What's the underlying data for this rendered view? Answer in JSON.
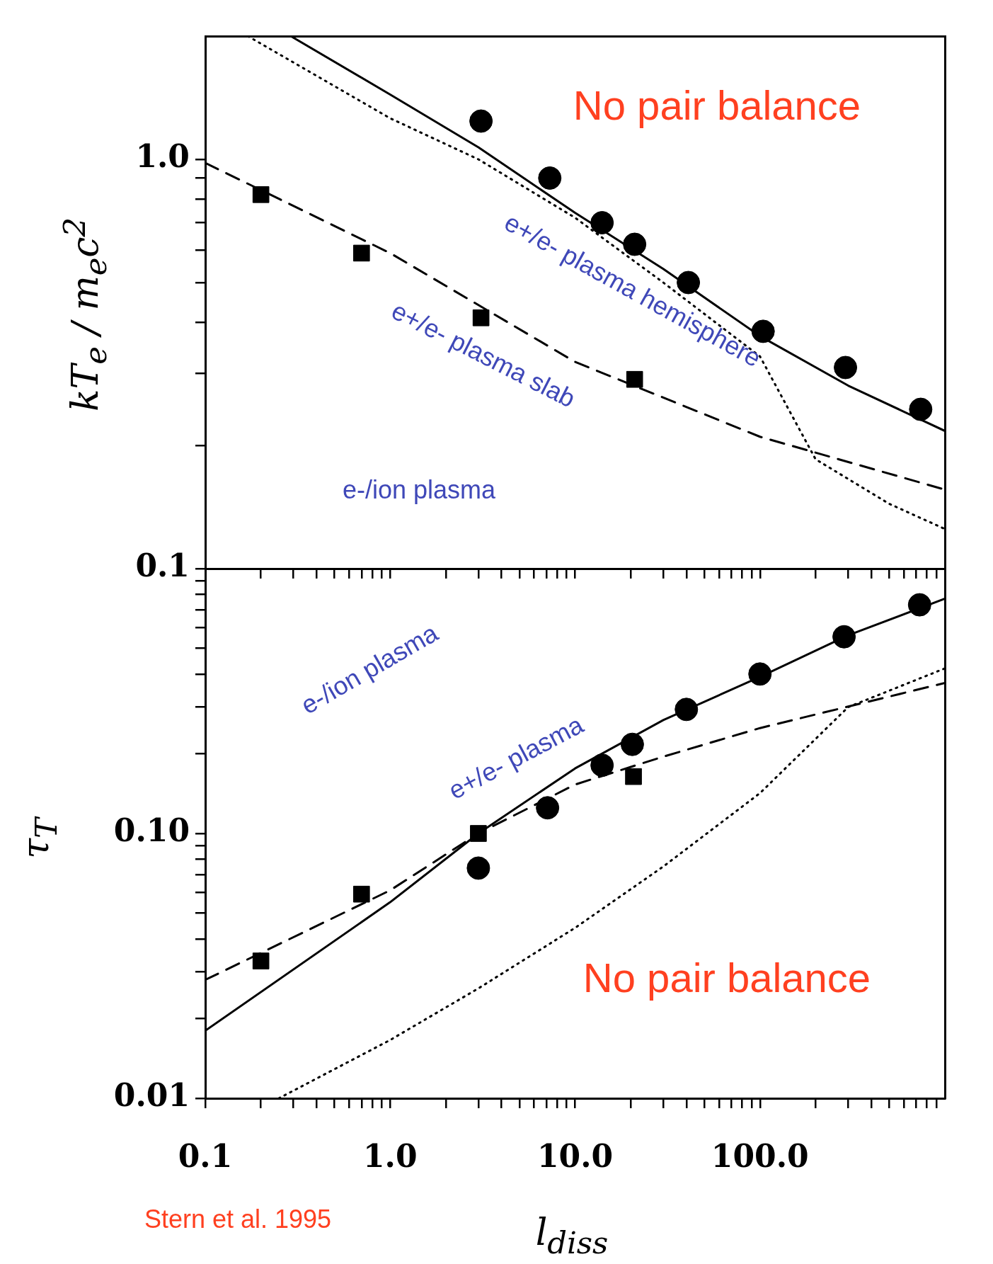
{
  "chart_data": [
    {
      "type": "line",
      "ylabel": "kT$_{e}$ / m$_{e}$c$^{2}$",
      "log": "xy",
      "grid": false,
      "legend": false,
      "tick_labels": "y",
      "xlim": [
        0.1,
        1000
      ],
      "ylim": [
        0.1,
        2
      ],
      "xticks": [
        0.1,
        {
          "value": 0.2,
          "label": null
        },
        {
          "value": 0.3,
          "label": null
        },
        {
          "value": 0.4,
          "label": null
        },
        {
          "value": 0.5,
          "label": null
        },
        {
          "value": 0.6,
          "label": null
        },
        {
          "value": 0.7,
          "label": null
        },
        {
          "value": 0.8,
          "label": null
        },
        {
          "value": 0.9,
          "label": null
        },
        {
          "value": 1,
          "label": null
        },
        {
          "value": 2,
          "label": null
        },
        {
          "value": 3,
          "label": null
        },
        {
          "value": 4,
          "label": null
        },
        {
          "value": 5,
          "label": null
        },
        {
          "value": 6,
          "label": null
        },
        {
          "value": 7,
          "label": null
        },
        {
          "value": 8,
          "label": null
        },
        {
          "value": 9,
          "label": null
        },
        {
          "value": 10,
          "label": null
        },
        {
          "value": 20,
          "label": null
        },
        {
          "value": 30,
          "label": null
        },
        {
          "value": 40,
          "label": null
        },
        {
          "value": 50,
          "label": null
        },
        {
          "value": 60,
          "label": null
        },
        {
          "value": 70,
          "label": null
        },
        {
          "value": 80,
          "label": null
        },
        {
          "value": 90,
          "label": null
        },
        {
          "value": 100,
          "label": null
        },
        {
          "value": 200,
          "label": null
        },
        {
          "value": 300,
          "label": null
        },
        {
          "value": 400,
          "label": null
        },
        {
          "value": 500,
          "label": null
        },
        {
          "value": 600,
          "label": null
        },
        {
          "value": 700,
          "label": null
        },
        {
          "value": 800,
          "label": null
        },
        {
          "value": 900,
          "label": null
        }
      ],
      "yticks": [
        0.1,
        {
          "value": 0.2,
          "label": null
        },
        {
          "value": 0.3,
          "label": null
        },
        {
          "value": 0.4,
          "label": null
        },
        {
          "value": 0.5,
          "label": null
        },
        {
          "value": 0.6,
          "label": null
        },
        {
          "value": 0.7,
          "label": null
        },
        {
          "value": 0.8,
          "label": null
        },
        {
          "value": 0.9,
          "label": null
        },
        {
          "value": 1,
          "label": "1.0"
        }
      ],
      "series": [
        {
          "line_style": "solid",
          "marker": "none",
          "color": "#000000",
          "x": [
            0.29,
            1,
            3,
            10,
            30,
            100,
            300,
            1000
          ],
          "values": [
            2.0,
            1.44,
            1.07,
            0.74,
            0.54,
            0.37,
            0.28,
            0.217
          ]
        },
        {
          "line_style": "dotted",
          "marker": "none",
          "color": "#000000",
          "x": [
            0.17,
            1,
            3,
            10,
            30,
            100,
            200,
            500,
            1000
          ],
          "values": [
            2.0,
            1.26,
            1.0,
            0.72,
            0.5,
            0.33,
            0.185,
            0.144,
            0.125
          ]
        },
        {
          "line_style": "dashed",
          "marker": "none",
          "color": "#000000",
          "x": [
            0.1,
            1,
            10,
            100,
            1000
          ],
          "values": [
            0.98,
            0.59,
            0.32,
            0.21,
            0.156
          ]
        },
        {
          "type": "scatter",
          "marker": "square",
          "color": "#000000",
          "x": [
            0.2,
            0.7,
            3.1,
            21
          ],
          "values": [
            0.82,
            0.59,
            0.41,
            0.29
          ]
        },
        {
          "type": "scatter",
          "marker": "circle",
          "color": "#000000",
          "x": [
            3.1,
            7.3,
            14,
            21,
            41,
            104,
            290,
            740
          ],
          "values": [
            1.24,
            0.9,
            0.7,
            0.62,
            0.5,
            0.38,
            0.31,
            0.245
          ]
        }
      ],
      "annotations": [
        "No pair balance",
        "e+/e- plasma hemisphere",
        "e+/e- plasma slab",
        "e-/ion plasma"
      ]
    },
    {
      "type": "line",
      "xlabel": "l$_{diss}$",
      "ylabel": "τ$_{T}$",
      "log": "xy",
      "grid": false,
      "legend": false,
      "xlim": [
        0.1,
        1000
      ],
      "ylim": [
        0.01,
        1
      ],
      "xticks": [
        0.1,
        {
          "value": 0.2,
          "label": null
        },
        {
          "value": 0.3,
          "label": null
        },
        {
          "value": 0.4,
          "label": null
        },
        {
          "value": 0.5,
          "label": null
        },
        {
          "value": 0.6,
          "label": null
        },
        {
          "value": 0.7,
          "label": null
        },
        {
          "value": 0.8,
          "label": null
        },
        {
          "value": 0.9,
          "label": null
        },
        {
          "value": 1,
          "label": "1.0"
        },
        {
          "value": 2,
          "label": null
        },
        {
          "value": 3,
          "label": null
        },
        {
          "value": 4,
          "label": null
        },
        {
          "value": 5,
          "label": null
        },
        {
          "value": 6,
          "label": null
        },
        {
          "value": 7,
          "label": null
        },
        {
          "value": 8,
          "label": null
        },
        {
          "value": 9,
          "label": null
        },
        {
          "value": 10,
          "label": "10.0"
        },
        {
          "value": 20,
          "label": null
        },
        {
          "value": 30,
          "label": null
        },
        {
          "value": 40,
          "label": null
        },
        {
          "value": 50,
          "label": null
        },
        {
          "value": 60,
          "label": null
        },
        {
          "value": 70,
          "label": null
        },
        {
          "value": 80,
          "label": null
        },
        {
          "value": 90,
          "label": null
        },
        {
          "value": 100,
          "label": "100.0"
        },
        {
          "value": 200,
          "label": null
        },
        {
          "value": 300,
          "label": null
        },
        {
          "value": 400,
          "label": null
        },
        {
          "value": 500,
          "label": null
        },
        {
          "value": 600,
          "label": null
        },
        {
          "value": 700,
          "label": null
        },
        {
          "value": 800,
          "label": null
        },
        {
          "value": 900,
          "label": null
        }
      ],
      "yticks": [
        0.01,
        {
          "value": 0.02,
          "label": null
        },
        {
          "value": 0.03,
          "label": null
        },
        {
          "value": 0.04,
          "label": null
        },
        {
          "value": 0.05,
          "label": null
        },
        {
          "value": 0.06,
          "label": null
        },
        {
          "value": 0.07,
          "label": null
        },
        {
          "value": 0.08,
          "label": null
        },
        {
          "value": 0.09,
          "label": null
        },
        {
          "value": 0.1,
          "label": "0.10"
        },
        {
          "value": 0.2,
          "label": null
        },
        {
          "value": 0.3,
          "label": null
        },
        {
          "value": 0.4,
          "label": null
        },
        {
          "value": 0.5,
          "label": null
        },
        {
          "value": 0.6,
          "label": null
        },
        {
          "value": 0.7,
          "label": null
        },
        {
          "value": 0.8,
          "label": null
        },
        {
          "value": 0.9,
          "label": null
        }
      ],
      "series": [
        {
          "line_style": "solid",
          "marker": "none",
          "color": "#000000",
          "x": [
            0.1,
            1,
            3,
            10,
            30,
            100,
            300,
            1000
          ],
          "values": [
            0.018,
            0.055,
            0.1,
            0.176,
            0.268,
            0.39,
            0.56,
            0.77
          ]
        },
        {
          "line_style": "dashed",
          "marker": "none",
          "color": "#000000",
          "x": [
            0.1,
            1,
            3,
            10,
            30,
            100,
            1000
          ],
          "values": [
            0.028,
            0.061,
            0.1,
            0.153,
            0.195,
            0.25,
            0.37
          ]
        },
        {
          "line_style": "dotted",
          "marker": "none",
          "color": "#000000",
          "x": [
            0.25,
            1,
            3,
            10,
            30,
            100,
            300,
            1000
          ],
          "values": [
            0.01,
            0.0166,
            0.026,
            0.044,
            0.075,
            0.142,
            0.3,
            0.42
          ]
        },
        {
          "type": "scatter",
          "marker": "square",
          "color": "#000000",
          "x": [
            0.2,
            0.7,
            3.0,
            20.7
          ],
          "values": [
            0.033,
            0.059,
            0.1,
            0.164
          ]
        },
        {
          "type": "scatter",
          "marker": "circle",
          "color": "#000000",
          "x": [
            3.0,
            7.1,
            14,
            20.4,
            40,
            100,
            285,
            730
          ],
          "values": [
            0.074,
            0.125,
            0.181,
            0.217,
            0.294,
            0.4,
            0.553,
            0.73
          ]
        }
      ],
      "annotations": [
        "e-/ion plasma",
        "e+/e- plasma",
        "No pair balance",
        "Stern et al. 1995"
      ]
    }
  ]
}
